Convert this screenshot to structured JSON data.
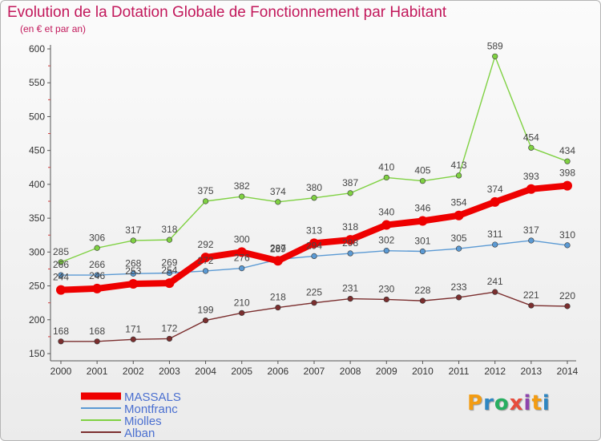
{
  "chart_data": {
    "type": "line",
    "title": "Evolution de la Dotation Globale de Fonctionnement par Habitant",
    "subtitle": "(en € et par an)",
    "xlabel": "",
    "ylabel": "",
    "x": [
      "2000",
      "2001",
      "2002",
      "2003",
      "2004",
      "2005",
      "2006",
      "2007",
      "2008",
      "2009",
      "2010",
      "2011",
      "2012",
      "2013",
      "2014"
    ],
    "ylim": [
      150,
      600
    ],
    "yticks": [
      150,
      200,
      250,
      300,
      350,
      400,
      450,
      500,
      550,
      600
    ],
    "legend_position": "bottom-left",
    "series": [
      {
        "name": "Miolles",
        "color": "#7fd142",
        "values": [
          285,
          306,
          317,
          318,
          375,
          382,
          374,
          380,
          387,
          410,
          405,
          413,
          589,
          454,
          434
        ]
      },
      {
        "name": "Montfranc",
        "color": "#5b9ad4",
        "values": [
          266,
          266,
          268,
          269,
          272,
          276,
          289,
          294,
          298,
          302,
          301,
          305,
          311,
          317,
          310
        ]
      },
      {
        "name": "Alban",
        "color": "#7b2e2e",
        "values": [
          168,
          168,
          171,
          172,
          199,
          210,
          218,
          225,
          231,
          230,
          228,
          233,
          241,
          221,
          220
        ]
      },
      {
        "name": "MASSALS",
        "color": "#ee0000",
        "values": [
          244,
          246,
          253,
          254,
          292,
          300,
          287,
          313,
          318,
          340,
          346,
          354,
          374,
          393,
          398
        ]
      }
    ],
    "legend_order": [
      "MASSALS",
      "Montfranc",
      "Miolles",
      "Alban"
    ]
  },
  "logo_text": "Proxiti"
}
